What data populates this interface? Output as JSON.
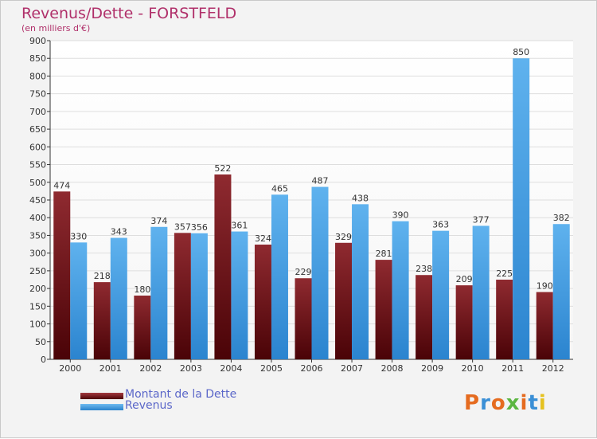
{
  "chart_data": {
    "type": "bar",
    "title": "Revenus/Dette - FORSTFELD",
    "subtitle": "(en milliers d'€)",
    "categories": [
      "2000",
      "2001",
      "2002",
      "2003",
      "2004",
      "2005",
      "2006",
      "2007",
      "2008",
      "2009",
      "2010",
      "2011",
      "2012"
    ],
    "series": [
      {
        "name": "Montant de la Dette",
        "color": "#6e0e14",
        "values": [
          474,
          218,
          180,
          357,
          522,
          324,
          229,
          329,
          281,
          238,
          209,
          225,
          190
        ]
      },
      {
        "name": "Revenus",
        "color": "#3b9be0",
        "values": [
          330,
          343,
          374,
          356,
          361,
          465,
          487,
          438,
          390,
          363,
          377,
          850,
          382
        ]
      }
    ],
    "ylim": [
      0,
      900
    ],
    "ytick_step": 50,
    "grid": true,
    "legend_position": "bottom-left"
  },
  "logo_text": "Proxiti",
  "logo_colors": [
    "#e56b1f",
    "#3a8fd6",
    "#e56b1f",
    "#5bb640",
    "#e56b1f",
    "#3a8fd6",
    "#e5c21f"
  ]
}
